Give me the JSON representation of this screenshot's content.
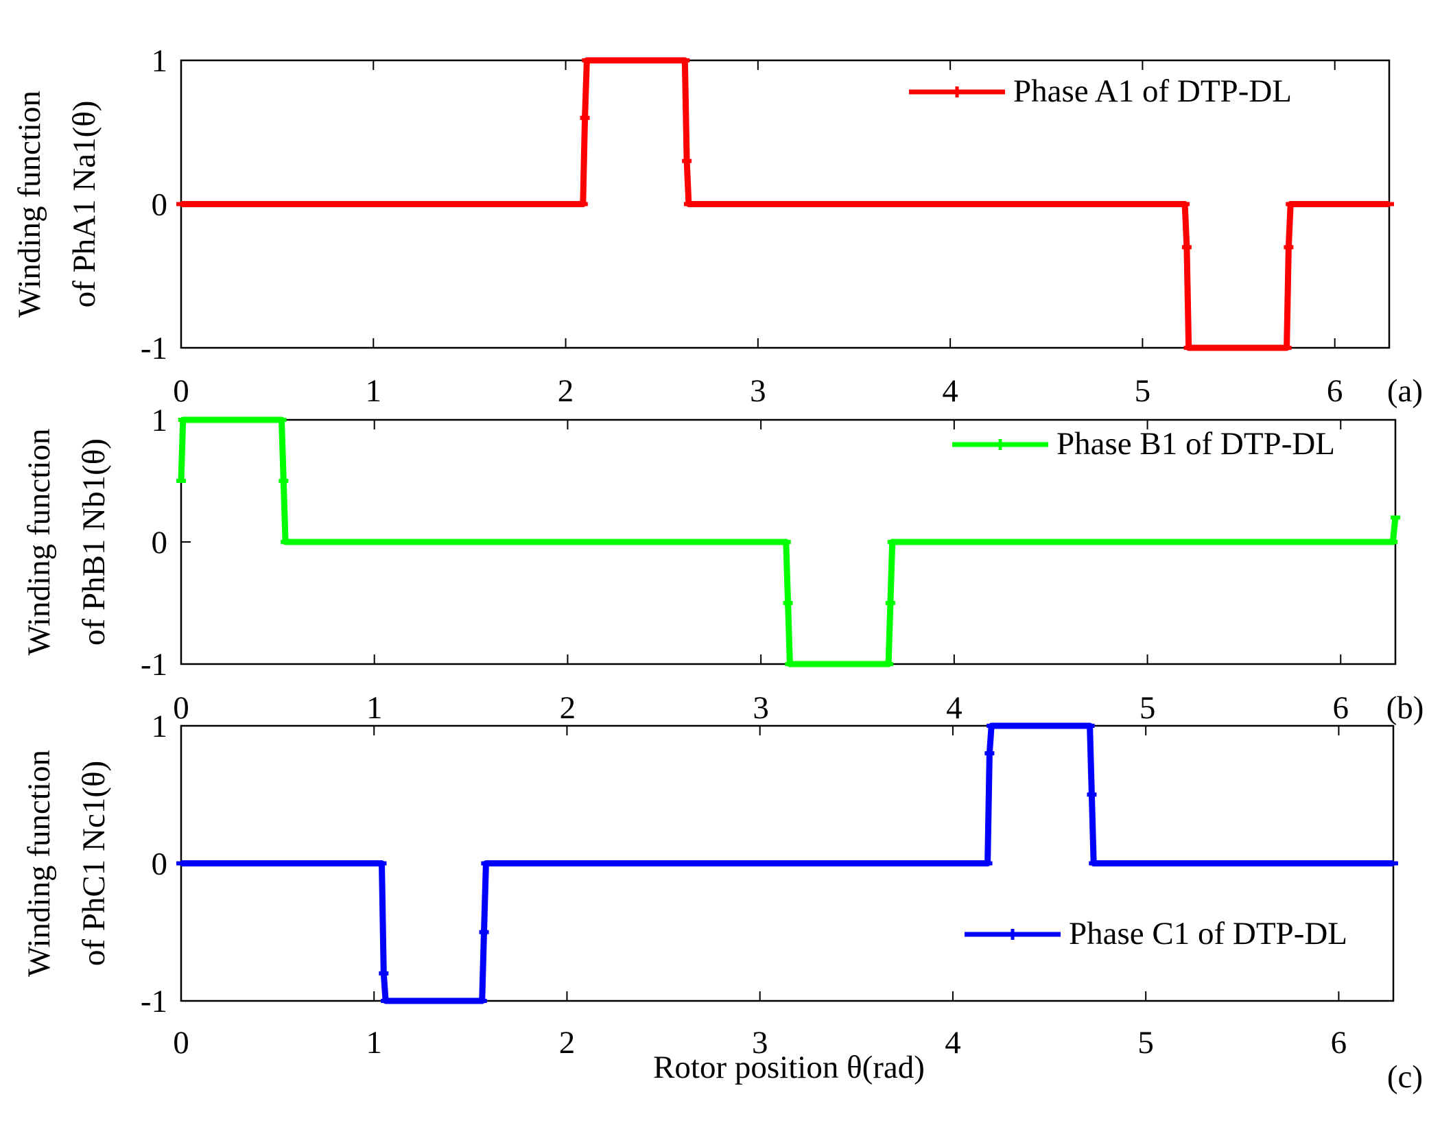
{
  "figure": {
    "xlabel": "Rotor position θ(rad)"
  },
  "chart_data": [
    {
      "type": "line",
      "panel_label": "(a)",
      "ylabel_line1": "Winding function",
      "ylabel_line2": "of PhA1 Na1(θ)",
      "xlim": [
        0,
        6.283
      ],
      "ylim": [
        -1,
        1
      ],
      "xticks": [
        0,
        1,
        2,
        3,
        4,
        5,
        6
      ],
      "yticks": [
        -1,
        0,
        1
      ],
      "grid": false,
      "legend_position": "top-right",
      "series": [
        {
          "name": "Phase A1 of DTP-DL",
          "color": "#ff0000",
          "x": [
            0,
            2.09,
            2.1,
            2.11,
            2.6,
            2.62,
            2.63,
            2.64,
            5.22,
            5.23,
            5.24,
            5.75,
            5.76,
            5.77,
            6.283
          ],
          "y": [
            0,
            0,
            0.6,
            1,
            1,
            1,
            0.3,
            0,
            0,
            -0.3,
            -1,
            -1,
            -0.3,
            0,
            0
          ]
        }
      ]
    },
    {
      "type": "line",
      "panel_label": "(b)",
      "ylabel_line1": "Winding function",
      "ylabel_line2": "of PhB1 Nb1(θ)",
      "xlim": [
        0,
        6.283
      ],
      "ylim": [
        -1,
        1
      ],
      "xticks": [
        0,
        1,
        2,
        3,
        4,
        5,
        6
      ],
      "yticks": [
        -1,
        0,
        1
      ],
      "grid": false,
      "legend_position": "top-right",
      "series": [
        {
          "name": "Phase B1 of DTP-DL",
          "color": "#00ff00",
          "x": [
            0,
            0.01,
            0.02,
            0.52,
            0.53,
            0.54,
            3.13,
            3.14,
            3.15,
            3.66,
            3.67,
            3.68,
            6.27,
            6.283
          ],
          "y": [
            0.5,
            1,
            1,
            1,
            0.5,
            0,
            0,
            -0.5,
            -1,
            -1,
            -0.5,
            0,
            0,
            0.2
          ]
        }
      ]
    },
    {
      "type": "line",
      "panel_label": "(c)",
      "ylabel_line1": "Winding function",
      "ylabel_line2": "of PhC1 Nc1(θ)",
      "xlim": [
        0,
        6.283
      ],
      "ylim": [
        -1,
        1
      ],
      "xticks": [
        0,
        1,
        2,
        3,
        4,
        5,
        6
      ],
      "yticks": [
        -1,
        0,
        1
      ],
      "grid": false,
      "legend_position": "bottom-right",
      "series": [
        {
          "name": "Phase C1 of DTP-DL",
          "color": "#0000ff",
          "x": [
            0,
            1.04,
            1.05,
            1.06,
            1.56,
            1.57,
            1.58,
            4.18,
            4.19,
            4.2,
            4.71,
            4.72,
            4.73,
            6.283
          ],
          "y": [
            0,
            0,
            -0.8,
            -1,
            -1,
            -0.5,
            0,
            0,
            0.8,
            1,
            1,
            0.5,
            0,
            0
          ]
        }
      ]
    }
  ]
}
